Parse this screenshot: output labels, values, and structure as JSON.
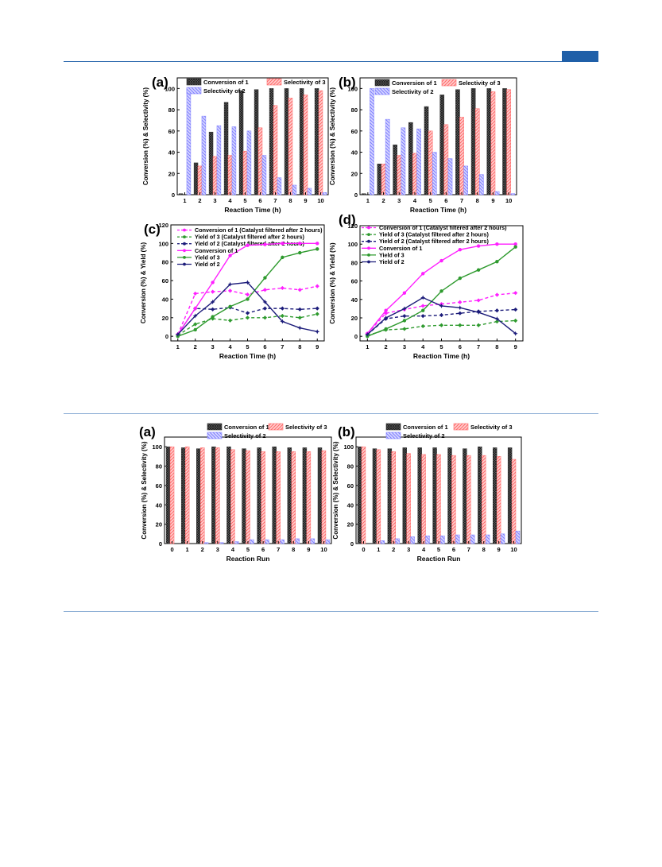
{
  "page": {
    "accent_color": "#1f5fa8"
  },
  "colors": {
    "conv": "#333333",
    "sel3": "#ff6b6b",
    "sel2": "#8080ff",
    "magenta": "#ff1fff",
    "green": "#2e9a2e",
    "navy": "#1c1c7a"
  },
  "chart_data": [
    {
      "id": "fig1a",
      "type": "bar",
      "panel_label": "(a)",
      "xlabel": "Reaction Time (h)",
      "ylabel": "Conversion (%) & Selectivity (%)",
      "ylim": [
        0,
        110
      ],
      "yticks": [
        0,
        20,
        40,
        60,
        80,
        100
      ],
      "categories": [
        "1",
        "2",
        "3",
        "4",
        "5",
        "6",
        "7",
        "8",
        "9",
        "10"
      ],
      "series": [
        {
          "name": "Conversion of 1",
          "pattern": "conv",
          "values": [
            1,
            30,
            59,
            87,
            98,
            99,
            100,
            100,
            100,
            100
          ]
        },
        {
          "name": "Selectivity of 3",
          "pattern": "sel3",
          "values": [
            0,
            27,
            36,
            37,
            41,
            63,
            84,
            91,
            94,
            98
          ]
        },
        {
          "name": "Selectivity of 2",
          "pattern": "sel2",
          "values": [
            100,
            74,
            65,
            64,
            60,
            37,
            16,
            9,
            6,
            2
          ]
        }
      ],
      "legend_order": [
        0,
        1,
        2
      ]
    },
    {
      "id": "fig1b",
      "type": "bar",
      "panel_label": "(b)",
      "xlabel": "Reaction Time (h)",
      "ylabel": "Conversion (%) & Selectivity (%)",
      "ylim": [
        0,
        110
      ],
      "yticks": [
        0,
        20,
        40,
        60,
        80,
        100
      ],
      "categories": [
        "1",
        "2",
        "3",
        "4",
        "5",
        "6",
        "7",
        "8",
        "9",
        "10"
      ],
      "series": [
        {
          "name": "Conversion of 1",
          "pattern": "conv",
          "values": [
            1,
            29,
            47,
            68,
            83,
            94,
            99,
            100,
            100,
            100
          ]
        },
        {
          "name": "Selectivity of 3",
          "pattern": "sel3",
          "values": [
            0,
            29,
            37,
            39,
            60,
            66,
            73,
            81,
            97,
            99
          ]
        },
        {
          "name": "Selectivity of 2",
          "pattern": "sel2",
          "values": [
            100,
            71,
            63,
            62,
            40,
            34,
            27,
            19,
            3,
            1
          ]
        }
      ],
      "legend_order": [
        0,
        1,
        2
      ]
    },
    {
      "id": "fig1c",
      "type": "line",
      "panel_label": "(c)",
      "xlabel": "Reaction Time (h)",
      "ylabel": "Conversion (%) & Yield (%)",
      "ylim": [
        -5,
        120
      ],
      "yticks": [
        0,
        20,
        40,
        60,
        80,
        100,
        120
      ],
      "x": [
        1,
        2,
        3,
        4,
        5,
        6,
        7,
        8,
        9
      ],
      "series": [
        {
          "name": "Conversion of 1 (Catalyst filtered after 2 hours)",
          "color": "magenta",
          "dashed": true,
          "values": [
            2,
            46,
            48,
            49,
            45,
            50,
            52,
            50,
            54
          ]
        },
        {
          "name": "Yield of 3 (Catalyst filtered after 2 hours)",
          "color": "green",
          "dashed": true,
          "values": [
            1,
            13,
            19,
            17,
            20,
            20,
            22,
            20,
            24
          ]
        },
        {
          "name": "Yield of 2 (Catalyst filtered after 2 hours)",
          "color": "navy",
          "dashed": true,
          "values": [
            2,
            30,
            29,
            31,
            25,
            30,
            30,
            29,
            30
          ]
        },
        {
          "name": "Conversion of 1",
          "color": "magenta",
          "dashed": false,
          "values": [
            2,
            30,
            58,
            87,
            98,
            99,
            100,
            100,
            100
          ]
        },
        {
          "name": "Yield of 3",
          "color": "green",
          "dashed": false,
          "values": [
            0,
            7,
            21,
            32,
            40,
            63,
            85,
            90,
            94
          ]
        },
        {
          "name": "Yield of 2",
          "color": "navy",
          "dashed": false,
          "values": [
            2,
            22,
            37,
            56,
            58,
            37,
            16,
            9,
            5
          ]
        }
      ]
    },
    {
      "id": "fig1d",
      "type": "line",
      "panel_label": "(d)",
      "xlabel": "Reaction Time (h)",
      "ylabel": "Conversion (%) & Yield (%)",
      "ylim": [
        -5,
        120
      ],
      "yticks": [
        0,
        20,
        40,
        60,
        80,
        100,
        120
      ],
      "x": [
        1,
        2,
        3,
        4,
        5,
        6,
        7,
        8,
        9
      ],
      "series": [
        {
          "name": "Conversion of 1 (Catalyst filtered after 2 hours)",
          "color": "magenta",
          "dashed": true,
          "values": [
            3,
            25,
            29,
            33,
            35,
            37,
            39,
            45,
            47
          ]
        },
        {
          "name": "Yield of 3 (Catalyst filtered after 2 hours)",
          "color": "green",
          "dashed": true,
          "values": [
            1,
            7,
            8,
            11,
            12,
            12,
            12,
            16,
            17
          ]
        },
        {
          "name": "Yield of 2 (Catalyst filtered after 2 hours)",
          "color": "navy",
          "dashed": true,
          "values": [
            2,
            19,
            22,
            22,
            23,
            25,
            27,
            28,
            29
          ]
        },
        {
          "name": "Conversion of 1",
          "color": "magenta",
          "dashed": false,
          "values": [
            3,
            28,
            47,
            68,
            82,
            94,
            98,
            100,
            100
          ]
        },
        {
          "name": "Yield of 3",
          "color": "green",
          "dashed": false,
          "values": [
            0,
            8,
            17,
            28,
            49,
            63,
            72,
            81,
            97
          ]
        },
        {
          "name": "Yield of 2",
          "color": "navy",
          "dashed": false,
          "values": [
            2,
            20,
            30,
            42,
            33,
            31,
            26,
            19,
            3
          ]
        }
      ]
    },
    {
      "id": "fig2a",
      "type": "bar",
      "panel_label": "(a)",
      "xlabel": "Reaction Run",
      "ylabel": "Conversion (%) & Selectivity (%)",
      "ylim": [
        0,
        110
      ],
      "yticks": [
        0,
        20,
        40,
        60,
        80,
        100
      ],
      "categories": [
        "0",
        "1",
        "2",
        "3",
        "4",
        "5",
        "6",
        "7",
        "8",
        "9",
        "10"
      ],
      "series": [
        {
          "name": "Conversion of 1",
          "pattern": "conv",
          "values": [
            100,
            99,
            98,
            100,
            100,
            98,
            99,
            100,
            99,
            99,
            99
          ]
        },
        {
          "name": "Selectivity of 3",
          "pattern": "sel3",
          "values": [
            100,
            100,
            99,
            99,
            97,
            96,
            95,
            95,
            95,
            95,
            96
          ]
        },
        {
          "name": "Selectivity of 2",
          "pattern": "sel2",
          "values": [
            0,
            0,
            1,
            1,
            2,
            4,
            4,
            4,
            5,
            5,
            4
          ]
        }
      ],
      "legend_order": [
        0,
        1,
        2
      ]
    },
    {
      "id": "fig2b",
      "type": "bar",
      "panel_label": "(b)",
      "xlabel": "Reaction Run",
      "ylabel": "Conversion (%) & Selectivity (%)",
      "ylim": [
        0,
        110
      ],
      "yticks": [
        0,
        20,
        40,
        60,
        80,
        100
      ],
      "categories": [
        "0",
        "1",
        "2",
        "3",
        "4",
        "5",
        "6",
        "7",
        "8",
        "9",
        "10"
      ],
      "series": [
        {
          "name": "Conversion of 1",
          "pattern": "conv",
          "values": [
            100,
            98,
            98,
            99,
            99,
            99,
            99,
            98,
            100,
            99,
            99
          ]
        },
        {
          "name": "Selectivity of 3",
          "pattern": "sel3",
          "values": [
            100,
            97,
            95,
            93,
            92,
            92,
            91,
            91,
            91,
            90,
            87
          ]
        },
        {
          "name": "Selectivity of 2",
          "pattern": "sel2",
          "values": [
            0,
            3,
            5,
            7,
            8,
            8,
            9,
            9,
            9,
            10,
            13
          ]
        }
      ],
      "legend_order": [
        0,
        1,
        2
      ]
    }
  ]
}
